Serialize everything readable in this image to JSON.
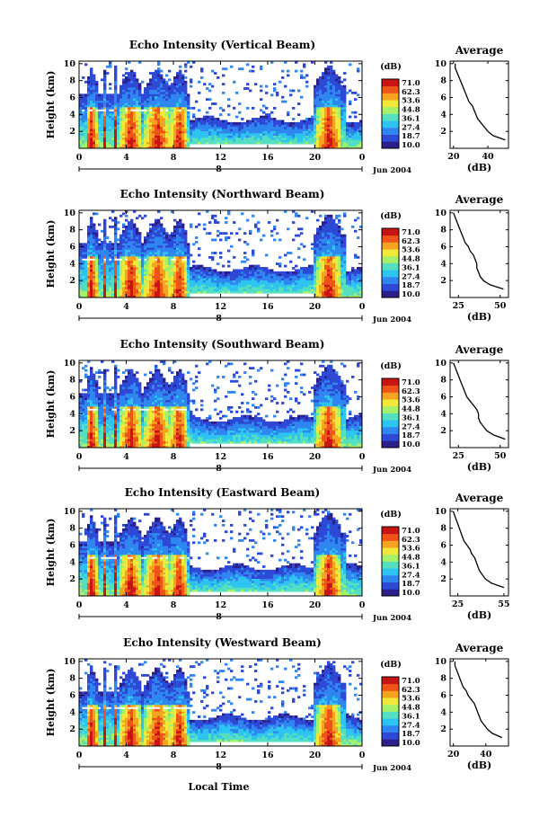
{
  "figure": {
    "bottom_xlabel": "Local Time"
  },
  "colorbar": {
    "unit": "(dB)",
    "levels": [
      "71.0",
      "62.3",
      "53.6",
      "44.8",
      "36.1",
      "27.4",
      "18.7",
      "10.0"
    ],
    "colors": [
      "#2b1f8c",
      "#2e49d6",
      "#2f86f0",
      "#2ec4f2",
      "#54e0c0",
      "#a6f06a",
      "#f2e83a",
      "#f6a321",
      "#ee5418",
      "#c81414"
    ]
  },
  "chart_data": [
    {
      "type": "heatmap",
      "title": "Echo Intensity (Vertical Beam)",
      "ylabel": "Height (km)",
      "yticks": [
        "2",
        "4",
        "6",
        "8",
        "10"
      ],
      "xticks": [
        "0",
        "4",
        "8",
        "12",
        "16",
        "20",
        "0"
      ],
      "date_tick": "8",
      "date_label": "Jun 2004",
      "ylim": [
        0,
        10.3
      ],
      "xlim": [
        0,
        24
      ],
      "zlim": [
        10.0,
        71.0
      ],
      "average": {
        "title": "Average",
        "xlabel": "(dB)",
        "xticks": [
          "20",
          "40"
        ],
        "xlim": [
          18,
          52
        ],
        "ylim": [
          0,
          10.3
        ],
        "height": [
          1,
          1.5,
          2,
          2.5,
          3,
          3.5,
          4,
          4.5,
          5,
          5.5,
          6,
          6.5,
          7,
          7.5,
          8,
          8.5,
          9,
          9.5,
          10
        ],
        "db": [
          50,
          43,
          40,
          38,
          36,
          34,
          33,
          32,
          31,
          29,
          28,
          27,
          26,
          25,
          24,
          23,
          22,
          21,
          21
        ]
      }
    },
    {
      "type": "heatmap",
      "title": "Echo Intensity (Northward Beam)",
      "ylabel": "Height (km)",
      "yticks": [
        "2",
        "4",
        "6",
        "8",
        "10"
      ],
      "xticks": [
        "0",
        "4",
        "8",
        "12",
        "16",
        "20",
        "0"
      ],
      "date_tick": "8",
      "date_label": "Jun 2004",
      "ylim": [
        0,
        10.3
      ],
      "xlim": [
        0,
        24
      ],
      "zlim": [
        10.0,
        71.0
      ],
      "average": {
        "title": "Average",
        "xlabel": "(dB)",
        "xticks": [
          "25",
          "50"
        ],
        "xlim": [
          20,
          55
        ],
        "ylim": [
          0,
          10.3
        ],
        "height": [
          1,
          1.5,
          2,
          2.5,
          3,
          3.5,
          4,
          4.5,
          5,
          5.5,
          6,
          6.5,
          7,
          7.5,
          8,
          8.5,
          9,
          9.5,
          10
        ],
        "db": [
          52,
          44,
          40,
          38,
          37,
          36,
          36,
          35,
          34,
          32,
          31,
          29,
          28,
          27,
          26,
          25,
          24,
          23,
          22
        ]
      }
    },
    {
      "type": "heatmap",
      "title": "Echo Intensity (Southward Beam)",
      "ylabel": "Height (km)",
      "yticks": [
        "2",
        "4",
        "6",
        "8",
        "10"
      ],
      "xticks": [
        "0",
        "4",
        "8",
        "12",
        "16",
        "20",
        "0"
      ],
      "date_tick": "8",
      "date_label": "Jun 2004",
      "ylim": [
        0,
        10.3
      ],
      "xlim": [
        0,
        24
      ],
      "zlim": [
        10.0,
        71.0
      ],
      "average": {
        "title": "Average",
        "xlabel": "(dB)",
        "xticks": [
          "25",
          "50"
        ],
        "xlim": [
          20,
          55
        ],
        "ylim": [
          0,
          10.3
        ],
        "height": [
          1,
          1.5,
          2,
          2.5,
          3,
          3.5,
          4,
          4.5,
          5,
          5.5,
          6,
          6.5,
          7,
          7.5,
          8,
          8.5,
          9,
          9.5,
          10
        ],
        "db": [
          53,
          46,
          42,
          40,
          38,
          37,
          37,
          36,
          34,
          32,
          30,
          29,
          28,
          27,
          26,
          25,
          24,
          23,
          22
        ]
      }
    },
    {
      "type": "heatmap",
      "title": "Echo Intensity (Eastward Beam)",
      "ylabel": "Height (km)",
      "yticks": [
        "2",
        "4",
        "6",
        "8",
        "10"
      ],
      "xticks": [
        "0",
        "4",
        "8",
        "12",
        "16",
        "20",
        "0"
      ],
      "date_tick": "8",
      "date_label": "Jun 2004",
      "ylim": [
        0,
        10.3
      ],
      "xlim": [
        0,
        24
      ],
      "zlim": [
        10.0,
        71.0
      ],
      "average": {
        "title": "Average",
        "xlabel": "(dB)",
        "xticks": [
          "25",
          "55"
        ],
        "xlim": [
          20,
          58
        ],
        "ylim": [
          0,
          10.3
        ],
        "height": [
          1,
          1.5,
          2,
          2.5,
          3,
          3.5,
          4,
          4.5,
          5,
          5.5,
          6,
          6.5,
          7,
          7.5,
          8,
          8.5,
          9,
          9.5,
          10
        ],
        "db": [
          55,
          47,
          43,
          41,
          39,
          38,
          37,
          36,
          34,
          33,
          31,
          29,
          28,
          27,
          26,
          25,
          24,
          23,
          22
        ]
      }
    },
    {
      "type": "heatmap",
      "title": "Echo Intensity (Westward Beam)",
      "ylabel": "Height (km)",
      "yticks": [
        "2",
        "4",
        "6",
        "8",
        "10"
      ],
      "xticks": [
        "0",
        "4",
        "8",
        "12",
        "16",
        "20",
        "0"
      ],
      "date_tick": "8",
      "date_label": "Jun 2004",
      "ylim": [
        0,
        10.3
      ],
      "xlim": [
        0,
        24
      ],
      "zlim": [
        10.0,
        71.0
      ],
      "average": {
        "title": "Average",
        "xlabel": "(dB)",
        "xticks": [
          "20",
          "40"
        ],
        "xlim": [
          18,
          54
        ],
        "ylim": [
          0,
          10.3
        ],
        "height": [
          1,
          1.5,
          2,
          2.5,
          3,
          3.5,
          4,
          4.5,
          5,
          5.5,
          6,
          6.5,
          7,
          7.5,
          8,
          8.5,
          9,
          9.5,
          10
        ],
        "db": [
          50,
          44,
          41,
          39,
          37,
          36,
          35,
          34,
          33,
          31,
          29,
          28,
          26,
          25,
          24,
          23,
          22,
          21,
          21
        ]
      }
    }
  ]
}
